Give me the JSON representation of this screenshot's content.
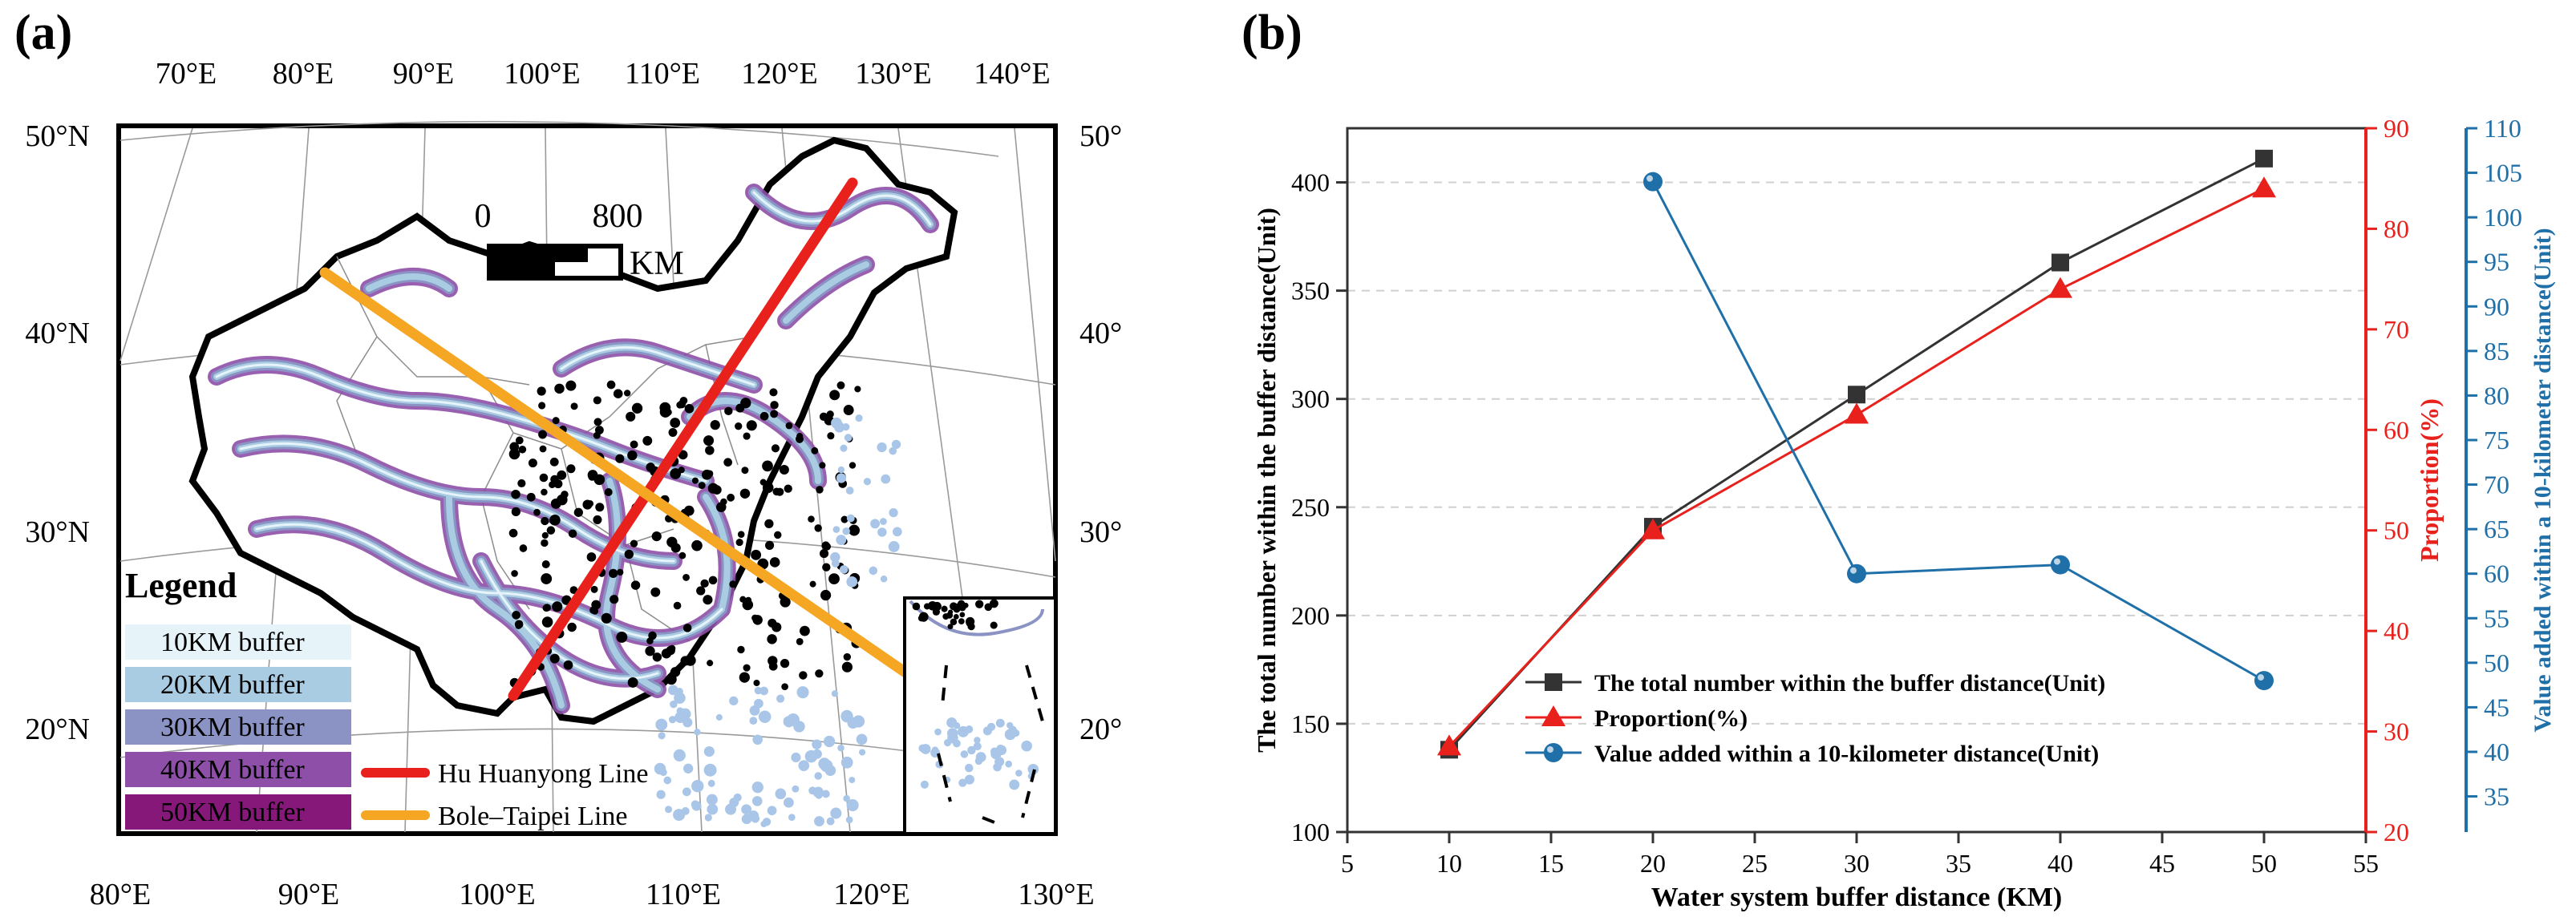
{
  "panel_a": {
    "label": "(a)",
    "top_lon_labels": [
      "70°E",
      "80°E",
      "90°E",
      "100°E",
      "110°E",
      "120°E",
      "130°E",
      "140°E"
    ],
    "bottom_lon_labels": [
      "80°E",
      "90°E",
      "100°E",
      "110°E",
      "120°E",
      "130°E"
    ],
    "left_lat_labels": [
      "50°N",
      "40°N",
      "30°N",
      "20°N"
    ],
    "right_lat_labels": [
      "50°N",
      "40°N",
      "30°N",
      "20°N"
    ],
    "scale_bar": {
      "zero": "0",
      "distance": "800",
      "unit": "KM"
    },
    "legend": {
      "title": "Legend",
      "buffers": [
        {
          "label": "10KM buffer",
          "color": "#e6f4fa"
        },
        {
          "label": "20KM buffer",
          "color": "#a9cce3"
        },
        {
          "label": "30KM buffer",
          "color": "#8a93c4"
        },
        {
          "label": "40KM buffer",
          "color": "#8e4fa8"
        },
        {
          "label": "50KM buffer",
          "color": "#86187a"
        }
      ],
      "lines": [
        {
          "label": "Hu Huanyong Line",
          "color": "#e8211d"
        },
        {
          "label": "Bole–Taipei Line",
          "color": "#f5a623"
        }
      ]
    }
  },
  "panel_b": {
    "label": "(b)"
  },
  "chart_data": {
    "type": "line",
    "x": [
      10,
      20,
      30,
      40,
      50
    ],
    "xlabel": "Water system buffer distance (KM)",
    "xlim": [
      5,
      55
    ],
    "xticks": [
      "5",
      "10",
      "15",
      "20",
      "25",
      "30",
      "35",
      "40",
      "45",
      "50",
      "55"
    ],
    "y_left": {
      "label": "The total number within the buffer distance(Unit)",
      "lim": [
        100,
        425
      ],
      "ticks": [
        "100",
        "150",
        "200",
        "250",
        "300",
        "350",
        "400"
      ],
      "color": "#333333"
    },
    "y_right1": {
      "label": "Proportion(%)",
      "lim": [
        20,
        90
      ],
      "ticks": [
        "20",
        "30",
        "40",
        "50",
        "60",
        "70",
        "80",
        "90"
      ],
      "color": "#e8211d"
    },
    "y_right2": {
      "label": "Value added within a 10-kilometer distance(Unit)",
      "lim": [
        31,
        110
      ],
      "ticks": [
        "35",
        "40",
        "45",
        "50",
        "55",
        "60",
        "65",
        "70",
        "75",
        "80",
        "85",
        "90",
        "95",
        "100",
        "105",
        "110"
      ],
      "color": "#1f6fa8"
    },
    "series": [
      {
        "name": "The total number within the buffer distance(Unit)",
        "axis": "left",
        "marker": "square",
        "color": "#333333",
        "values": [
          138,
          241,
          302,
          363,
          411
        ]
      },
      {
        "name": "Proportion(%)",
        "axis": "right1",
        "marker": "triangle",
        "color": "#e8211d",
        "values": [
          28.5,
          50,
          61.5,
          74,
          84
        ]
      },
      {
        "name": "Value added within a 10-kilometer distance(Unit)",
        "axis": "right2",
        "marker": "circle",
        "color": "#1f6fa8",
        "x": [
          20,
          30,
          40,
          50
        ],
        "values": [
          104,
          60,
          61,
          48
        ]
      }
    ],
    "grid": "horizontal dashed",
    "legend_position": "bottom-center"
  }
}
